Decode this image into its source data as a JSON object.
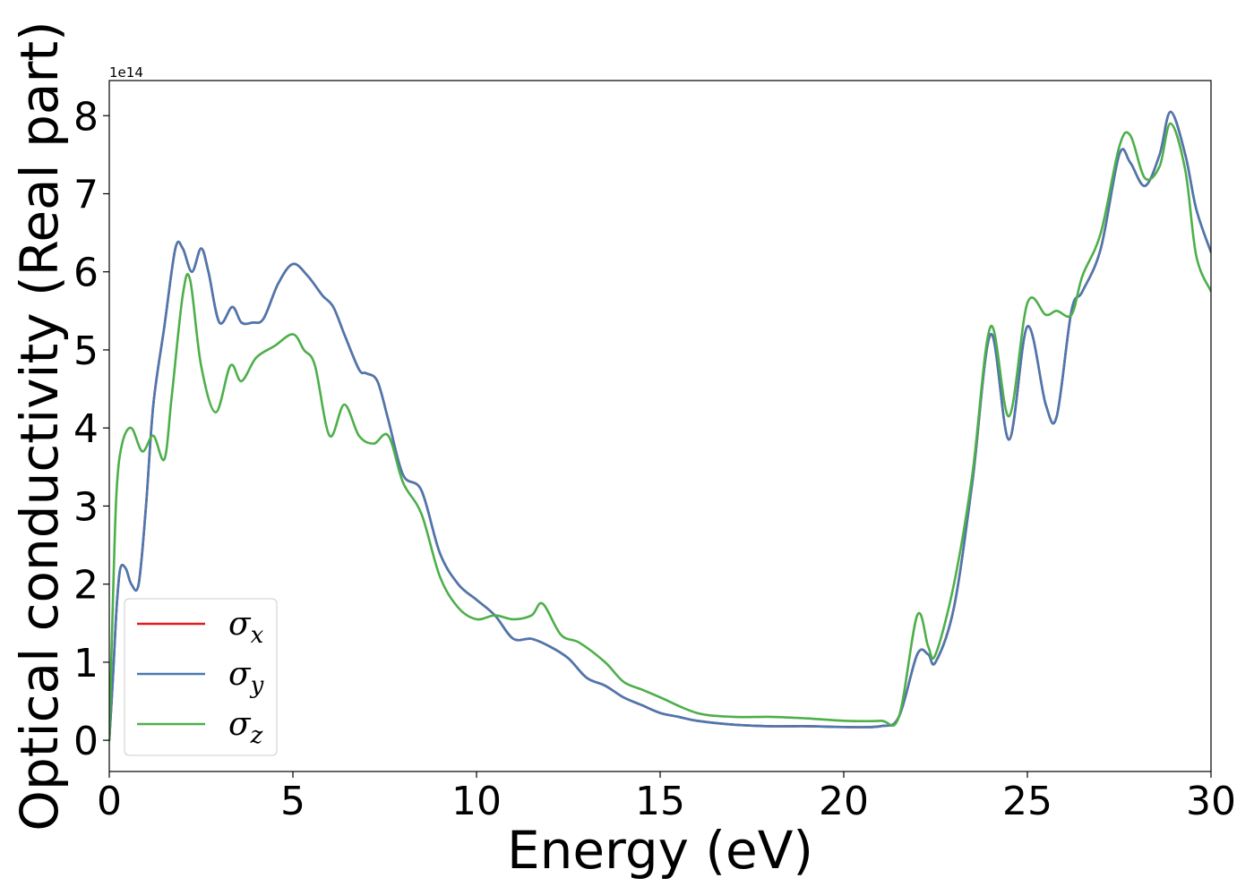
{
  "chart_data": {
    "type": "line",
    "title": "",
    "xlabel": "Energy (eV)",
    "ylabel": "Optical conductivity (Real part)",
    "y_offset_text": "1e14",
    "xlim": [
      0,
      30
    ],
    "ylim": [
      -0.4,
      8.45
    ],
    "y_scale": 100000000000000.0,
    "grid": false,
    "legend_location": "lower left",
    "x_ticks": [
      0,
      5,
      10,
      15,
      20,
      25,
      30
    ],
    "x_tick_labels": [
      "0",
      "5",
      "10",
      "15",
      "20",
      "25",
      "30"
    ],
    "y_ticks": [
      0,
      1,
      2,
      3,
      4,
      5,
      6,
      7,
      8
    ],
    "y_tick_labels": [
      "0",
      "1",
      "2",
      "3",
      "4",
      "5",
      "6",
      "7",
      "8"
    ],
    "series": [
      {
        "name": "σx",
        "symbol": "σ",
        "subscript": "x",
        "color": "#e41a1c",
        "x": [
          0,
          0.1,
          0.2,
          0.3,
          0.45,
          0.6,
          0.8,
          1.0,
          1.2,
          1.5,
          1.8,
          2.0,
          2.25,
          2.5,
          2.7,
          3.0,
          3.35,
          3.6,
          3.9,
          4.2,
          4.6,
          5.0,
          5.4,
          5.8,
          6.1,
          6.4,
          6.8,
          7.0,
          7.3,
          7.6,
          8.0,
          8.5,
          9.0,
          9.5,
          10.0,
          10.5,
          11.0,
          11.5,
          12.0,
          12.5,
          13.0,
          13.5,
          14.0,
          14.5,
          15.0,
          15.5,
          16.0,
          17.0,
          18.0,
          19.0,
          20.0,
          21.0,
          21.5,
          22.0,
          22.3,
          22.5,
          23.0,
          23.5,
          24.0,
          24.5,
          25.0,
          25.5,
          25.8,
          26.2,
          26.5,
          27.0,
          27.5,
          27.8,
          28.2,
          28.6,
          28.9,
          29.3,
          29.6,
          30.0
        ],
        "values": [
          0.0,
          0.8,
          1.7,
          2.2,
          2.2,
          2.0,
          2.0,
          3.0,
          4.3,
          5.3,
          6.3,
          6.3,
          6.0,
          6.3,
          6.0,
          5.35,
          5.55,
          5.35,
          5.35,
          5.4,
          5.85,
          6.1,
          5.95,
          5.7,
          5.55,
          5.2,
          4.75,
          4.7,
          4.6,
          4.1,
          3.4,
          3.2,
          2.4,
          2.0,
          1.8,
          1.6,
          1.3,
          1.3,
          1.2,
          1.05,
          0.8,
          0.7,
          0.55,
          0.45,
          0.35,
          0.3,
          0.25,
          0.2,
          0.18,
          0.18,
          0.17,
          0.18,
          0.3,
          1.1,
          1.1,
          1.0,
          1.7,
          3.3,
          5.2,
          3.85,
          5.3,
          4.3,
          4.15,
          5.5,
          5.75,
          6.3,
          7.5,
          7.4,
          7.1,
          7.5,
          8.05,
          7.5,
          6.8,
          6.25
        ]
      },
      {
        "name": "σy",
        "symbol": "σ",
        "subscript": "y",
        "color": "#4a78b0",
        "x": [
          0,
          0.1,
          0.2,
          0.3,
          0.45,
          0.6,
          0.8,
          1.0,
          1.2,
          1.5,
          1.8,
          2.0,
          2.25,
          2.5,
          2.7,
          3.0,
          3.35,
          3.6,
          3.9,
          4.2,
          4.6,
          5.0,
          5.4,
          5.8,
          6.1,
          6.4,
          6.8,
          7.0,
          7.3,
          7.6,
          8.0,
          8.5,
          9.0,
          9.5,
          10.0,
          10.5,
          11.0,
          11.5,
          12.0,
          12.5,
          13.0,
          13.5,
          14.0,
          14.5,
          15.0,
          15.5,
          16.0,
          17.0,
          18.0,
          19.0,
          20.0,
          21.0,
          21.5,
          22.0,
          22.3,
          22.5,
          23.0,
          23.5,
          24.0,
          24.5,
          25.0,
          25.5,
          25.8,
          26.2,
          26.5,
          27.0,
          27.5,
          27.8,
          28.2,
          28.6,
          28.9,
          29.3,
          29.6,
          30.0
        ],
        "values": [
          0.0,
          0.8,
          1.7,
          2.2,
          2.2,
          2.0,
          2.0,
          3.0,
          4.3,
          5.3,
          6.3,
          6.3,
          6.0,
          6.3,
          6.0,
          5.35,
          5.55,
          5.35,
          5.35,
          5.4,
          5.85,
          6.1,
          5.95,
          5.7,
          5.55,
          5.2,
          4.75,
          4.7,
          4.6,
          4.1,
          3.4,
          3.2,
          2.4,
          2.0,
          1.8,
          1.6,
          1.3,
          1.3,
          1.2,
          1.05,
          0.8,
          0.7,
          0.55,
          0.45,
          0.35,
          0.3,
          0.25,
          0.2,
          0.18,
          0.18,
          0.17,
          0.18,
          0.3,
          1.1,
          1.1,
          1.0,
          1.7,
          3.3,
          5.2,
          3.85,
          5.3,
          4.3,
          4.15,
          5.5,
          5.75,
          6.3,
          7.5,
          7.4,
          7.1,
          7.5,
          8.05,
          7.5,
          6.8,
          6.25
        ]
      },
      {
        "name": "σz",
        "symbol": "σ",
        "subscript": "z",
        "color": "#4daf4a",
        "x": [
          0,
          0.1,
          0.2,
          0.35,
          0.6,
          0.9,
          1.2,
          1.5,
          1.7,
          2.0,
          2.2,
          2.5,
          2.9,
          3.3,
          3.6,
          4.0,
          4.5,
          5.0,
          5.3,
          5.6,
          6.0,
          6.4,
          6.8,
          7.2,
          7.6,
          8.0,
          8.5,
          9.0,
          9.5,
          10.0,
          10.5,
          11.0,
          11.5,
          11.8,
          12.3,
          12.8,
          13.5,
          14.0,
          14.5,
          15.0,
          16.0,
          17.0,
          18.0,
          19.0,
          20.0,
          21.0,
          21.5,
          22.0,
          22.3,
          22.5,
          23.0,
          23.5,
          24.0,
          24.5,
          25.0,
          25.5,
          25.8,
          26.2,
          26.5,
          27.0,
          27.5,
          27.8,
          28.2,
          28.6,
          28.9,
          29.3,
          29.6,
          30.0
        ],
        "values": [
          0.0,
          1.8,
          3.2,
          3.8,
          4.0,
          3.7,
          3.9,
          3.6,
          4.4,
          5.7,
          5.9,
          4.8,
          4.2,
          4.8,
          4.6,
          4.9,
          5.05,
          5.2,
          5.0,
          4.8,
          3.9,
          4.3,
          3.9,
          3.8,
          3.9,
          3.3,
          2.9,
          2.1,
          1.7,
          1.55,
          1.6,
          1.55,
          1.6,
          1.75,
          1.35,
          1.25,
          1.0,
          0.75,
          0.65,
          0.55,
          0.35,
          0.3,
          0.3,
          0.28,
          0.25,
          0.25,
          0.3,
          1.6,
          1.2,
          1.1,
          2.0,
          3.4,
          5.3,
          4.15,
          5.6,
          5.45,
          5.5,
          5.45,
          5.95,
          6.5,
          7.6,
          7.75,
          7.2,
          7.35,
          7.9,
          7.3,
          6.2,
          5.75
        ]
      }
    ]
  }
}
